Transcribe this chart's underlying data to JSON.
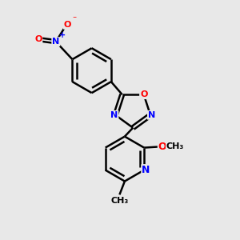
{
  "background_color": "#e8e8e8",
  "bond_color": "#000000",
  "bond_width": 1.8,
  "atom_colors": {
    "N": "#0000ff",
    "O": "#ff0000",
    "C": "#000000"
  }
}
